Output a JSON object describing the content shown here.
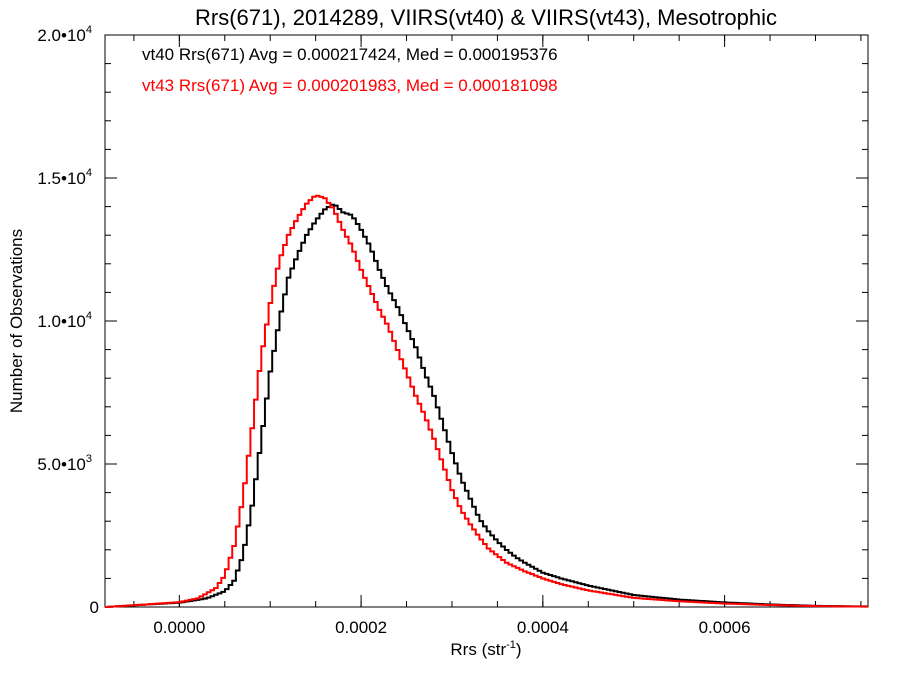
{
  "chart_data": {
    "type": "line",
    "title": "Rrs(671), 2014289, VIIRS(vt40) & VIIRS(vt43), Mesotrophic",
    "xlabel": "Rrs (str",
    "xlabel_sup": "-1",
    "xlabel_close": ")",
    "ylabel": "Number of Observations",
    "xlim": [
      -8.18e-05,
      0.0007578
    ],
    "ylim": [
      0,
      20000
    ],
    "x_ticks": [
      {
        "value": 0.0,
        "label": "0.0000"
      },
      {
        "value": 0.0002,
        "label": "0.0002"
      },
      {
        "value": 0.0004,
        "label": "0.0004"
      },
      {
        "value": 0.0006,
        "label": "0.0006"
      }
    ],
    "y_ticks": [
      {
        "value": 0,
        "label": "0",
        "sup": ""
      },
      {
        "value": 5000,
        "label": "5.0•10",
        "sup": "3"
      },
      {
        "value": 10000,
        "label": "1.0•10",
        "sup": "4"
      },
      {
        "value": 15000,
        "label": "1.5•10",
        "sup": "4"
      },
      {
        "value": 20000,
        "label": "2.0•10",
        "sup": "4"
      }
    ],
    "grid": false,
    "legend_position": "top-left",
    "series": [
      {
        "name": "vt40",
        "color": "#000000",
        "stat_text": "vt40 Rrs(671) Avg = 0.000217424, Med = 0.000195376",
        "points": [
          [
            -8e-05,
            0
          ],
          [
            -4e-05,
            80
          ],
          [
            0.0,
            150
          ],
          [
            3e-05,
            300
          ],
          [
            5e-05,
            550
          ],
          [
            6e-05,
            900
          ],
          [
            7e-05,
            1800
          ],
          [
            8e-05,
            3500
          ],
          [
            9e-05,
            5800
          ],
          [
            0.0001,
            8200
          ],
          [
            0.00011,
            10000
          ],
          [
            0.00012,
            11500
          ],
          [
            0.00013,
            12300
          ],
          [
            0.00014,
            13000
          ],
          [
            0.00015,
            13500
          ],
          [
            0.00016,
            13900
          ],
          [
            0.00017,
            14100
          ],
          [
            0.00018,
            13800
          ],
          [
            0.00019,
            13700
          ],
          [
            0.0002,
            13200
          ],
          [
            0.00021,
            12600
          ],
          [
            0.00022,
            11800
          ],
          [
            0.00023,
            11100
          ],
          [
            0.00024,
            10500
          ],
          [
            0.00025,
            9800
          ],
          [
            0.00026,
            9100
          ],
          [
            0.00027,
            8200
          ],
          [
            0.00028,
            7400
          ],
          [
            0.00029,
            6400
          ],
          [
            0.0003,
            5400
          ],
          [
            0.00031,
            4500
          ],
          [
            0.00032,
            3800
          ],
          [
            0.00033,
            3100
          ],
          [
            0.00034,
            2650
          ],
          [
            0.00035,
            2300
          ],
          [
            0.00036,
            2000
          ],
          [
            0.00037,
            1750
          ],
          [
            0.00038,
            1550
          ],
          [
            0.0004,
            1200
          ],
          [
            0.00042,
            1000
          ],
          [
            0.00045,
            750
          ],
          [
            0.0005,
            420
          ],
          [
            0.00055,
            260
          ],
          [
            0.0006,
            160
          ],
          [
            0.00065,
            90
          ],
          [
            0.0007,
            40
          ],
          [
            0.00075,
            20
          ]
        ]
      },
      {
        "name": "vt43",
        "color": "#ff0000",
        "stat_text": "vt43 Rrs(671) Avg = 0.000201983, Med = 0.000181098",
        "points": [
          [
            -8e-05,
            0
          ],
          [
            -4e-05,
            80
          ],
          [
            0.0,
            170
          ],
          [
            2e-05,
            300
          ],
          [
            4e-05,
            650
          ],
          [
            5e-05,
            1100
          ],
          [
            6e-05,
            2100
          ],
          [
            7e-05,
            3800
          ],
          [
            8e-05,
            6200
          ],
          [
            9e-05,
            8700
          ],
          [
            0.0001,
            10600
          ],
          [
            0.00011,
            12100
          ],
          [
            0.00012,
            13000
          ],
          [
            0.00013,
            13600
          ],
          [
            0.00014,
            14100
          ],
          [
            0.00015,
            14400
          ],
          [
            0.00016,
            14300
          ],
          [
            0.00017,
            13900
          ],
          [
            0.00018,
            13200
          ],
          [
            0.00019,
            12600
          ],
          [
            0.0002,
            11800
          ],
          [
            0.00021,
            11100
          ],
          [
            0.00022,
            10400
          ],
          [
            0.00023,
            9800
          ],
          [
            0.00024,
            9000
          ],
          [
            0.00025,
            8200
          ],
          [
            0.00026,
            7400
          ],
          [
            0.00027,
            6700
          ],
          [
            0.00028,
            5900
          ],
          [
            0.00029,
            5000
          ],
          [
            0.0003,
            4100
          ],
          [
            0.00031,
            3400
          ],
          [
            0.00032,
            2900
          ],
          [
            0.00033,
            2450
          ],
          [
            0.00034,
            2050
          ],
          [
            0.00035,
            1800
          ],
          [
            0.00036,
            1550
          ],
          [
            0.00038,
            1250
          ],
          [
            0.0004,
            1000
          ],
          [
            0.00042,
            800
          ],
          [
            0.00045,
            580
          ],
          [
            0.0005,
            320
          ],
          [
            0.00055,
            200
          ],
          [
            0.0006,
            120
          ],
          [
            0.00065,
            70
          ],
          [
            0.0007,
            30
          ],
          [
            0.00075,
            15
          ]
        ]
      }
    ]
  }
}
